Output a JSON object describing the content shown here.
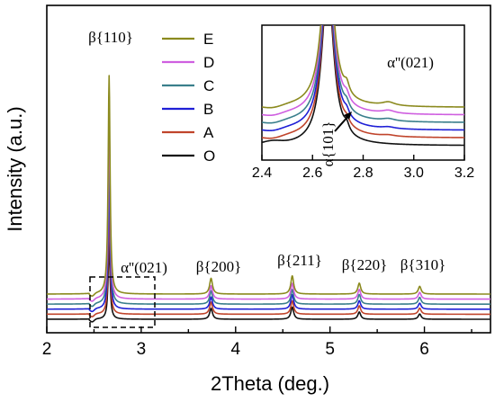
{
  "chart_data": {
    "type": "line",
    "xlabel": "2Theta (deg.)",
    "ylabel": "Intensity (a.u.)",
    "xlim": [
      2,
      6.7
    ],
    "xticks": [
      "2",
      "3",
      "4",
      "5",
      "6"
    ],
    "series": [
      {
        "name": "E",
        "color": "#8b8a1e",
        "offset": 0.5
      },
      {
        "name": "D",
        "color": "#cf5fe0",
        "offset": 0.4
      },
      {
        "name": "C",
        "color": "#3a7f8c",
        "offset": 0.3
      },
      {
        "name": "B",
        "color": "#1f1fd6",
        "offset": 0.2
      },
      {
        "name": "A",
        "color": "#c0442b",
        "offset": 0.1
      },
      {
        "name": "O",
        "color": "#111111",
        "offset": 0.0
      }
    ],
    "peaks": [
      {
        "x": 2.66,
        "label": "β{110}"
      },
      {
        "x": 3.74,
        "label": "β{200}"
      },
      {
        "x": 4.6,
        "label": "β{211}"
      },
      {
        "x": 5.31,
        "label": "β{220}"
      },
      {
        "x": 5.95,
        "label": "β{310}"
      }
    ],
    "annotations": [
      {
        "x": 2.9,
        "label": "α''(021)"
      }
    ],
    "legend_position": "top-center",
    "inset": {
      "xlim": [
        2.4,
        3.2
      ],
      "xticks": [
        "2.4",
        "2.6",
        "2.8",
        "3.0",
        "3.2"
      ],
      "annotations": [
        {
          "x": 2.67,
          "label": "α{101}"
        },
        {
          "x": 2.9,
          "label": "α''(021)"
        }
      ]
    }
  }
}
